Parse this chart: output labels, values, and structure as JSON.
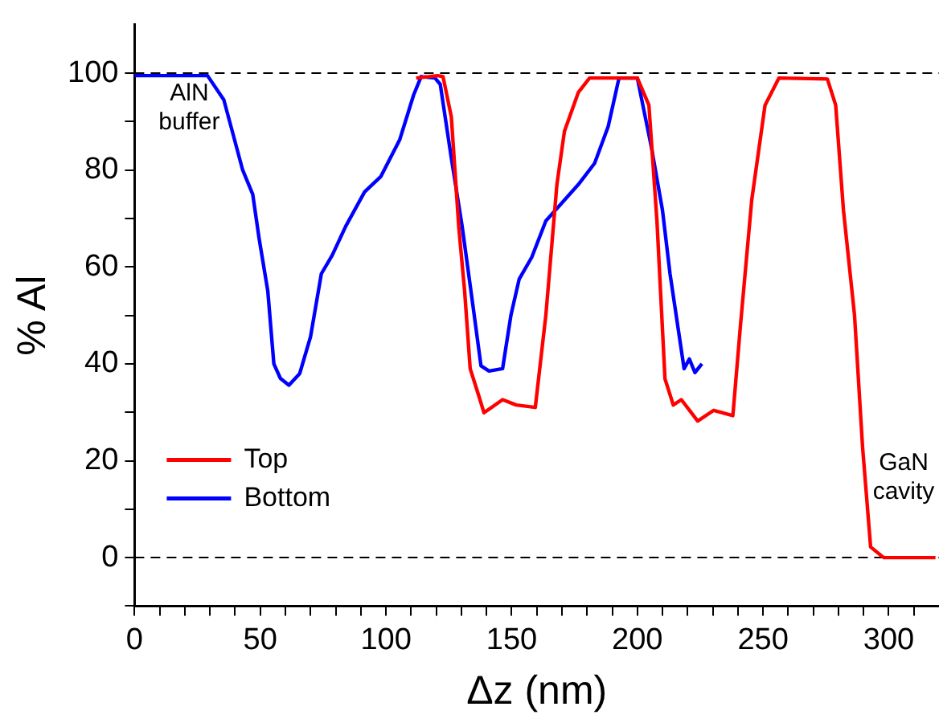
{
  "chart_data": {
    "type": "line",
    "xlabel": "Δz (nm)",
    "ylabel": "% Al",
    "xlim": [
      0,
      320
    ],
    "ylim": [
      -10,
      110
    ],
    "xticks": [
      0,
      {
        "value": 10,
        "label": null
      },
      {
        "value": 20,
        "label": null
      },
      {
        "value": 30,
        "label": null
      },
      {
        "value": 40,
        "label": null
      },
      50,
      {
        "value": 60,
        "label": null
      },
      {
        "value": 70,
        "label": null
      },
      {
        "value": 80,
        "label": null
      },
      {
        "value": 90,
        "label": null
      },
      100,
      {
        "value": 110,
        "label": null
      },
      {
        "value": 120,
        "label": null
      },
      {
        "value": 130,
        "label": null
      },
      {
        "value": 140,
        "label": null
      },
      150,
      {
        "value": 160,
        "label": null
      },
      {
        "value": 170,
        "label": null
      },
      {
        "value": 180,
        "label": null
      },
      {
        "value": 190,
        "label": null
      },
      200,
      {
        "value": 210,
        "label": null
      },
      {
        "value": 220,
        "label": null
      },
      {
        "value": 230,
        "label": null
      },
      {
        "value": 240,
        "label": null
      },
      250,
      {
        "value": 260,
        "label": null
      },
      {
        "value": 270,
        "label": null
      },
      {
        "value": 280,
        "label": null
      },
      {
        "value": 290,
        "label": null
      },
      300,
      {
        "value": 310,
        "label": null
      }
    ],
    "yticks": [
      {
        "value": -10,
        "label": null
      },
      0,
      {
        "value": 10,
        "label": null
      },
      20,
      {
        "value": 30,
        "label": null
      },
      40,
      {
        "value": 50,
        "label": null
      },
      60,
      {
        "value": 70,
        "label": null
      },
      80,
      {
        "value": 90,
        "label": null
      },
      100
    ],
    "series": [
      {
        "name": "Top",
        "color": "#ff0000",
        "x": [
          112,
          120.6,
          122.7,
          126,
          129,
          131.3,
          133.5,
          136.8,
          139,
          146.4,
          151.8,
          159.4,
          163.6,
          168,
          171,
          176.5,
          181,
          200,
          204.6,
          207.8,
          211,
          214.3,
          217.5,
          224,
          230.4,
          238,
          241,
          245.5,
          250.8,
          256.3,
          275.6,
          278.9,
          282,
          286.4,
          289.6,
          292.8,
          298,
          318.6
        ],
        "values": [
          99,
          99.5,
          99.3,
          91,
          68,
          55,
          39,
          33.6,
          29.9,
          32.6,
          31.5,
          31,
          50,
          77,
          88,
          96,
          99,
          99,
          93.4,
          69.5,
          36.9,
          31.5,
          32.6,
          28.2,
          30.4,
          29.3,
          47.8,
          73.8,
          93.4,
          99,
          98.8,
          93.4,
          71.7,
          50,
          22.8,
          2.2,
          0,
          0
        ]
      },
      {
        "name": "Bottom",
        "color": "#0000ff",
        "x": [
          0,
          29,
          35.5,
          43,
          47,
          49.5,
          53,
          55.4,
          58,
          61.4,
          65.7,
          70,
          74.3,
          78.6,
          84,
          91.5,
          98,
          105.5,
          111,
          114,
          119.5,
          121.6,
          126,
          130.3,
          134.6,
          137.8,
          141,
          146.4,
          149.7,
          153,
          158,
          163.6,
          176.5,
          183,
          188.4,
          192.7,
          200,
          205.6,
          210,
          213,
          218.6,
          220.7,
          222.9,
          225.7
        ],
        "values": [
          99.5,
          99.5,
          94.5,
          80,
          75,
          66,
          55,
          40,
          37,
          35.6,
          38,
          45.6,
          58.6,
          62.4,
          68.4,
          75.5,
          78.7,
          86.3,
          95.5,
          99.3,
          99,
          97.7,
          82.5,
          68.4,
          52,
          39.6,
          38.5,
          39,
          50,
          57.5,
          62,
          69.5,
          77,
          81.4,
          89,
          99,
          99,
          84.7,
          71.7,
          58.6,
          39,
          41,
          38.2,
          40
        ]
      }
    ],
    "ref_lines": [
      {
        "axis": "y",
        "value": 0,
        "color": "#000000",
        "line_style": "dashed"
      },
      {
        "axis": "y",
        "value": 100,
        "color": "#000000",
        "line_style": "dashed"
      }
    ],
    "annotations": [
      "AlN buffer",
      "GaN cavity"
    ],
    "legend": "bottom left",
    "grid": false,
    "marker": "none",
    "line_style": "solid"
  }
}
